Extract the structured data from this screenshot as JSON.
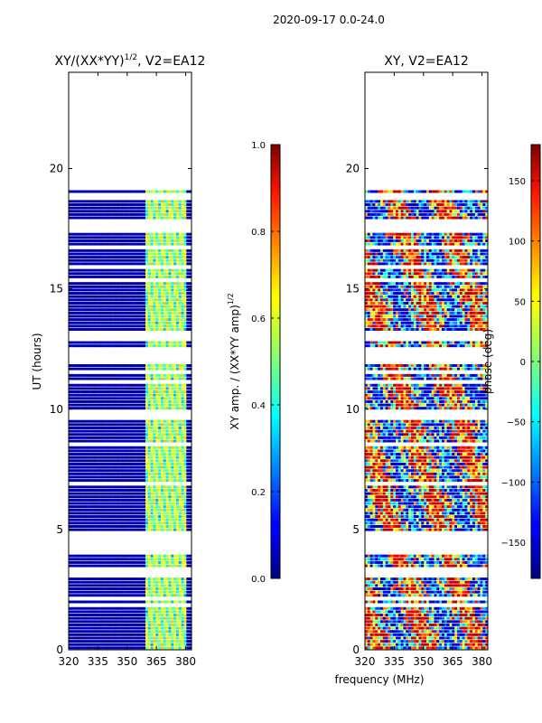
{
  "chart_data": [
    {
      "type": "heatmap",
      "title": "XY/(XX*YY)^{1/2}, V2=EA12",
      "title_main": "XY/(XX*YY)",
      "title_sup": "1/2",
      "title_tail": ", V2=EA12",
      "xlabel": "frequency (MHz)",
      "ylabel": "UT (hours)",
      "xlim": [
        320,
        383
      ],
      "ylim": [
        0,
        24
      ],
      "xticks": [
        320,
        335,
        350,
        365,
        380
      ],
      "xtick_labels": [
        "320",
        "335",
        "350",
        "365",
        "380"
      ],
      "yticks": [
        0,
        5,
        10,
        15,
        20
      ],
      "ytick_labels": [
        "0",
        "5",
        "10",
        "15",
        "20"
      ],
      "data_time_range": [
        0.0,
        19.1
      ],
      "data_gaps_hours": [
        [
          3.9,
          4.6
        ],
        [
          11.9,
          12.5
        ],
        [
          12.8,
          13.1
        ],
        [
          15.8,
          16.0
        ],
        [
          17.3,
          17.6
        ],
        [
          18.7,
          18.9
        ]
      ],
      "high_value_band_mhz": [
        360,
        380
      ],
      "colorbar": {
        "label": "XY amp. / (XX*YY amp)^{1/2}",
        "label_main": "XY amp. / (XX*YY amp)",
        "label_sup": "1/2",
        "range": [
          0.0,
          1.0
        ],
        "ticks": [
          0.0,
          0.2,
          0.4,
          0.6,
          0.8,
          1.0
        ],
        "tick_labels": [
          "0.0",
          "0.2",
          "0.4",
          "0.6",
          "0.8",
          "1.0"
        ],
        "colormap": "jet"
      }
    },
    {
      "type": "heatmap",
      "title": "XY, V2=EA12",
      "xlabel": "frequency (MHz)",
      "ylabel": "",
      "xlim": [
        320,
        383
      ],
      "ylim": [
        0,
        24
      ],
      "xticks": [
        320,
        335,
        350,
        365,
        380
      ],
      "xtick_labels": [
        "320",
        "335",
        "350",
        "365",
        "380"
      ],
      "yticks": [
        0,
        5,
        10,
        15,
        20
      ],
      "ytick_labels": [
        "0",
        "5",
        "10",
        "15",
        "20"
      ],
      "data_time_range": [
        0.0,
        19.1
      ],
      "colorbar": {
        "label": "phase (deg)",
        "range": [
          -180,
          180
        ],
        "ticks": [
          -150,
          -100,
          -50,
          0,
          50,
          100,
          150
        ],
        "tick_labels": [
          "−150",
          "−100",
          "−50",
          "0",
          "50",
          "100",
          "150"
        ],
        "colormap": "jet"
      }
    }
  ],
  "figure": {
    "suptitle": "2020-09-17 0.0-24.0",
    "shared_xlabel": "frequency (MHz)"
  }
}
